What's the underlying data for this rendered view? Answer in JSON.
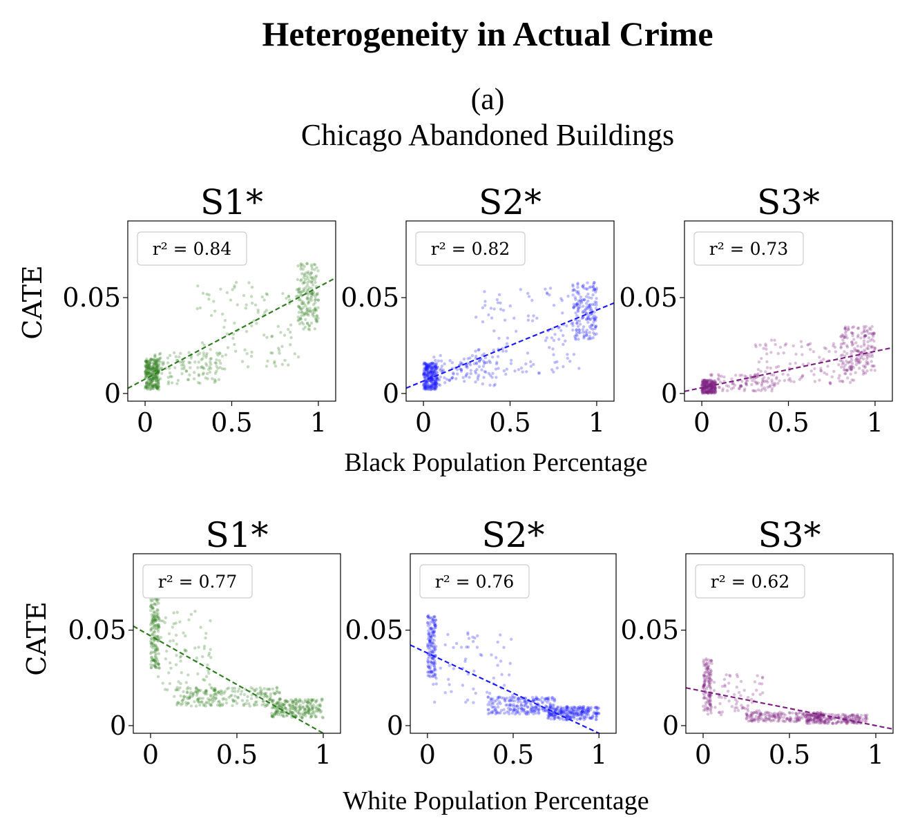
{
  "title": "Heterogeneity in Actual Crime",
  "panel_label": "(a)",
  "panel_subtitle": "Chicago Abandoned Buildings",
  "colors": {
    "S1*": "#2e7d1e",
    "S2*": "#1a1aff",
    "S3*": "#7d1f82"
  },
  "chart_data": [
    {
      "type": "scatter",
      "row": 1,
      "title": "S1*",
      "series_color": "#2e7d1e",
      "xlabel": "Black Population Percentage",
      "ylabel": "CATE",
      "r2_label": "r² = 0.84",
      "xlim": [
        -0.1,
        1.1
      ],
      "ylim": [
        -0.004,
        0.09
      ],
      "xticks": [
        0,
        0.5,
        1
      ],
      "xtick_labels": [
        "0",
        "0.5",
        "1"
      ],
      "yticks": [
        0,
        0.05
      ],
      "ytick_labels": [
        "0",
        "0.05"
      ],
      "trend": {
        "slope": 0.048,
        "intercept": 0.0075
      },
      "clusters": [
        {
          "x": [
            0.0,
            0.08
          ],
          "y": [
            0.002,
            0.018
          ],
          "n": 260
        },
        {
          "x": [
            0.05,
            0.45
          ],
          "y": [
            0.005,
            0.022
          ],
          "n": 110
        },
        {
          "x": [
            0.3,
            0.9
          ],
          "y": [
            0.012,
            0.058
          ],
          "n": 110
        },
        {
          "x": [
            0.88,
            1.0
          ],
          "y": [
            0.033,
            0.068
          ],
          "n": 170
        }
      ]
    },
    {
      "type": "scatter",
      "row": 1,
      "title": "S2*",
      "series_color": "#1a1aff",
      "xlabel": "Black Population Percentage",
      "ylabel": "CATE",
      "r2_label": "r² = 0.82",
      "xlim": [
        -0.1,
        1.1
      ],
      "ylim": [
        -0.004,
        0.09
      ],
      "xticks": [
        0,
        0.5,
        1
      ],
      "xtick_labels": [
        "0",
        "0.5",
        "1"
      ],
      "yticks": [
        0,
        0.05
      ],
      "ytick_labels": [
        "0",
        "0.05"
      ],
      "trend": {
        "slope": 0.037,
        "intercept": 0.0065
      },
      "clusters": [
        {
          "x": [
            0.0,
            0.08
          ],
          "y": [
            0.002,
            0.016
          ],
          "n": 260
        },
        {
          "x": [
            0.05,
            0.45
          ],
          "y": [
            0.004,
            0.02
          ],
          "n": 110
        },
        {
          "x": [
            0.3,
            0.9
          ],
          "y": [
            0.01,
            0.056
          ],
          "n": 110
        },
        {
          "x": [
            0.86,
            1.0
          ],
          "y": [
            0.028,
            0.058
          ],
          "n": 170
        }
      ]
    },
    {
      "type": "scatter",
      "row": 1,
      "title": "S3*",
      "series_color": "#7d1f82",
      "xlabel": "Black Population Percentage",
      "ylabel": "CATE",
      "r2_label": "r² = 0.73",
      "xlim": [
        -0.1,
        1.1
      ],
      "ylim": [
        -0.004,
        0.09
      ],
      "xticks": [
        0,
        0.5,
        1
      ],
      "xtick_labels": [
        "0",
        "0.5",
        "1"
      ],
      "yticks": [
        0,
        0.05
      ],
      "ytick_labels": [
        "0",
        "0.05"
      ],
      "trend": {
        "slope": 0.019,
        "intercept": 0.003
      },
      "clusters": [
        {
          "x": [
            0.0,
            0.08
          ],
          "y": [
            0.0,
            0.007
          ],
          "n": 240
        },
        {
          "x": [
            0.05,
            0.45
          ],
          "y": [
            0.001,
            0.01
          ],
          "n": 100
        },
        {
          "x": [
            0.3,
            0.9
          ],
          "y": [
            0.005,
            0.028
          ],
          "n": 110
        },
        {
          "x": [
            0.8,
            1.0
          ],
          "y": [
            0.01,
            0.035
          ],
          "n": 170
        }
      ]
    },
    {
      "type": "scatter",
      "row": 2,
      "title": "S1*",
      "series_color": "#2e7d1e",
      "xlabel": "White Population Percentage",
      "ylabel": "CATE",
      "r2_label": "r² = 0.77",
      "xlim": [
        -0.1,
        1.1
      ],
      "ylim": [
        -0.004,
        0.09
      ],
      "xticks": [
        0,
        0.5,
        1
      ],
      "xtick_labels": [
        "0",
        "0.5",
        "1"
      ],
      "yticks": [
        0,
        0.05
      ],
      "ytick_labels": [
        "0",
        "0.05"
      ],
      "trend": {
        "slope": -0.051,
        "intercept": 0.047
      },
      "clusters": [
        {
          "x": [
            0.0,
            0.05
          ],
          "y": [
            0.03,
            0.068
          ],
          "n": 160
        },
        {
          "x": [
            0.02,
            0.35
          ],
          "y": [
            0.015,
            0.06
          ],
          "n": 80
        },
        {
          "x": [
            0.15,
            0.75
          ],
          "y": [
            0.01,
            0.02
          ],
          "n": 220
        },
        {
          "x": [
            0.7,
            1.0
          ],
          "y": [
            0.004,
            0.014
          ],
          "n": 220
        }
      ]
    },
    {
      "type": "scatter",
      "row": 2,
      "title": "S2*",
      "series_color": "#1a1aff",
      "xlabel": "White Population Percentage",
      "ylabel": "CATE",
      "r2_label": "r² = 0.76",
      "xlim": [
        -0.1,
        1.1
      ],
      "ylim": [
        -0.004,
        0.09
      ],
      "xticks": [
        0,
        0.5,
        1
      ],
      "xtick_labels": [
        "0",
        "0.5",
        "1"
      ],
      "yticks": [
        0,
        0.05
      ],
      "ytick_labels": [
        "0",
        "0.05"
      ],
      "trend": {
        "slope": -0.042,
        "intercept": 0.038
      },
      "clusters": [
        {
          "x": [
            0.0,
            0.05
          ],
          "y": [
            0.025,
            0.058
          ],
          "n": 150
        },
        {
          "x": [
            0.02,
            0.5
          ],
          "y": [
            0.012,
            0.05
          ],
          "n": 60
        },
        {
          "x": [
            0.35,
            0.75
          ],
          "y": [
            0.006,
            0.015
          ],
          "n": 220
        },
        {
          "x": [
            0.7,
            1.0
          ],
          "y": [
            0.003,
            0.01
          ],
          "n": 240
        }
      ]
    },
    {
      "type": "scatter",
      "row": 2,
      "title": "S3*",
      "series_color": "#7d1f82",
      "xlabel": "White Population Percentage",
      "ylabel": "CATE",
      "r2_label": "r² = 0.62",
      "xlim": [
        -0.1,
        1.1
      ],
      "ylim": [
        -0.004,
        0.09
      ],
      "xticks": [
        0,
        0.5,
        1
      ],
      "xtick_labels": [
        "0",
        "0.5",
        "1"
      ],
      "yticks": [
        0,
        0.05
      ],
      "ytick_labels": [
        "0",
        "0.05"
      ],
      "trend": {
        "slope": -0.018,
        "intercept": 0.018
      },
      "clusters": [
        {
          "x": [
            0.0,
            0.05
          ],
          "y": [
            0.008,
            0.035
          ],
          "n": 120
        },
        {
          "x": [
            0.02,
            0.35
          ],
          "y": [
            0.005,
            0.027
          ],
          "n": 70
        },
        {
          "x": [
            0.25,
            0.7
          ],
          "y": [
            0.002,
            0.007
          ],
          "n": 200
        },
        {
          "x": [
            0.6,
            0.95
          ],
          "y": [
            0.001,
            0.006
          ],
          "n": 200
        }
      ]
    }
  ]
}
